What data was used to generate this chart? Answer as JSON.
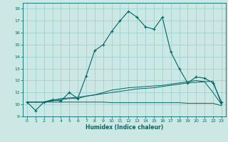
{
  "xlabel": "Humidex (Indice chaleur)",
  "background_color": "#cce8e4",
  "grid_color": "#99cccc",
  "line_color": "#006666",
  "xlim": [
    -0.5,
    23.5
  ],
  "ylim": [
    9,
    18.5
  ],
  "yticks": [
    9,
    10,
    11,
    12,
    13,
    14,
    15,
    16,
    17,
    18
  ],
  "xticks": [
    0,
    1,
    2,
    3,
    4,
    5,
    6,
    7,
    8,
    9,
    10,
    11,
    12,
    13,
    14,
    15,
    16,
    17,
    18,
    19,
    20,
    21,
    22,
    23
  ],
  "series": {
    "main": [
      10.2,
      9.5,
      10.2,
      10.4,
      10.3,
      11.0,
      10.5,
      12.4,
      14.5,
      15.0,
      16.1,
      17.0,
      17.8,
      17.3,
      16.5,
      16.3,
      17.3,
      14.4,
      13.0,
      11.8,
      12.3,
      12.2,
      11.8,
      10.2
    ],
    "smooth1": [
      10.2,
      10.2,
      10.2,
      10.3,
      10.4,
      10.5,
      10.5,
      10.7,
      10.8,
      10.9,
      11.0,
      11.1,
      11.2,
      11.3,
      11.35,
      11.4,
      11.5,
      11.6,
      11.7,
      11.8,
      11.85,
      11.9,
      11.95,
      10.0
    ],
    "smooth2": [
      10.2,
      10.2,
      10.2,
      10.35,
      10.5,
      10.55,
      10.6,
      10.7,
      10.8,
      11.0,
      11.2,
      11.3,
      11.4,
      11.45,
      11.5,
      11.55,
      11.6,
      11.7,
      11.8,
      11.9,
      12.0,
      11.9,
      11.0,
      10.0
    ],
    "flat": [
      10.2,
      10.2,
      10.2,
      10.2,
      10.2,
      10.2,
      10.2,
      10.2,
      10.2,
      10.2,
      10.15,
      10.15,
      10.15,
      10.15,
      10.15,
      10.15,
      10.15,
      10.15,
      10.15,
      10.1,
      10.1,
      10.1,
      10.1,
      9.9
    ]
  }
}
